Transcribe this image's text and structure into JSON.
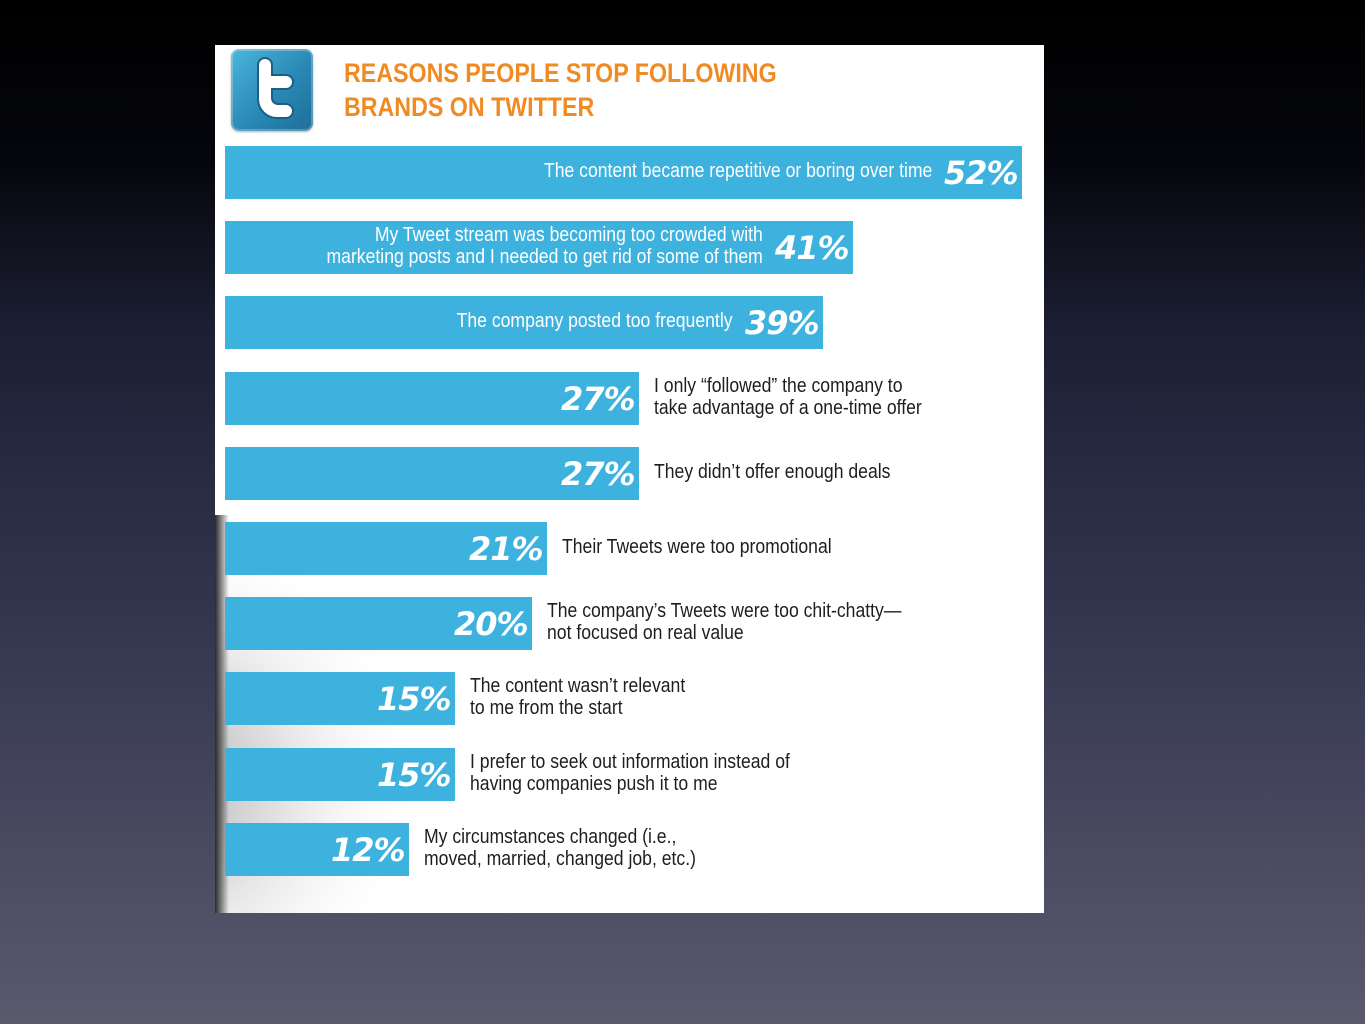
{
  "chart_data": {
    "type": "bar",
    "orientation": "horizontal",
    "title": "REASONS PEOPLE STOP FOLLOWING BRANDS ON TWITTER",
    "title_lines": [
      "REASONS PEOPLE STOP FOLLOWING",
      "BRANDS ON TWITTER"
    ],
    "value_suffix": "%",
    "xlim": [
      0,
      52
    ],
    "bar_color": "#3db2de",
    "title_color": "#f08a22",
    "items": [
      {
        "value": 52,
        "pct": "52%",
        "label_lines": [
          "The content became repetitive or boring over time"
        ]
      },
      {
        "value": 41,
        "pct": "41%",
        "label_lines": [
          "My Tweet stream was becoming too crowded with",
          "marketing posts and I needed to get rid of some of them"
        ]
      },
      {
        "value": 39,
        "pct": "39%",
        "label_lines": [
          "The company posted too frequently"
        ]
      },
      {
        "value": 27,
        "pct": "27%",
        "label_lines": [
          "I only “followed” the company to",
          "take advantage of a one-time offer"
        ]
      },
      {
        "value": 27,
        "pct": "27%",
        "label_lines": [
          "They didn’t offer enough deals"
        ]
      },
      {
        "value": 21,
        "pct": "21%",
        "label_lines": [
          "Their Tweets were too promotional"
        ]
      },
      {
        "value": 20,
        "pct": "20%",
        "label_lines": [
          "The company’s Tweets were too chit-chatty—",
          "not focused on real value"
        ]
      },
      {
        "value": 15,
        "pct": "15%",
        "label_lines": [
          "The content wasn’t relevant",
          "to me from the start"
        ]
      },
      {
        "value": 15,
        "pct": "15%",
        "label_lines": [
          "I prefer to seek out information instead of",
          "having companies push it to me"
        ]
      },
      {
        "value": 12,
        "pct": "12%",
        "label_lines": [
          "My circumstances changed (i.e.,",
          "moved, married, changed job, etc.)"
        ]
      }
    ]
  },
  "logo": {
    "icon": "twitter-t-icon"
  }
}
